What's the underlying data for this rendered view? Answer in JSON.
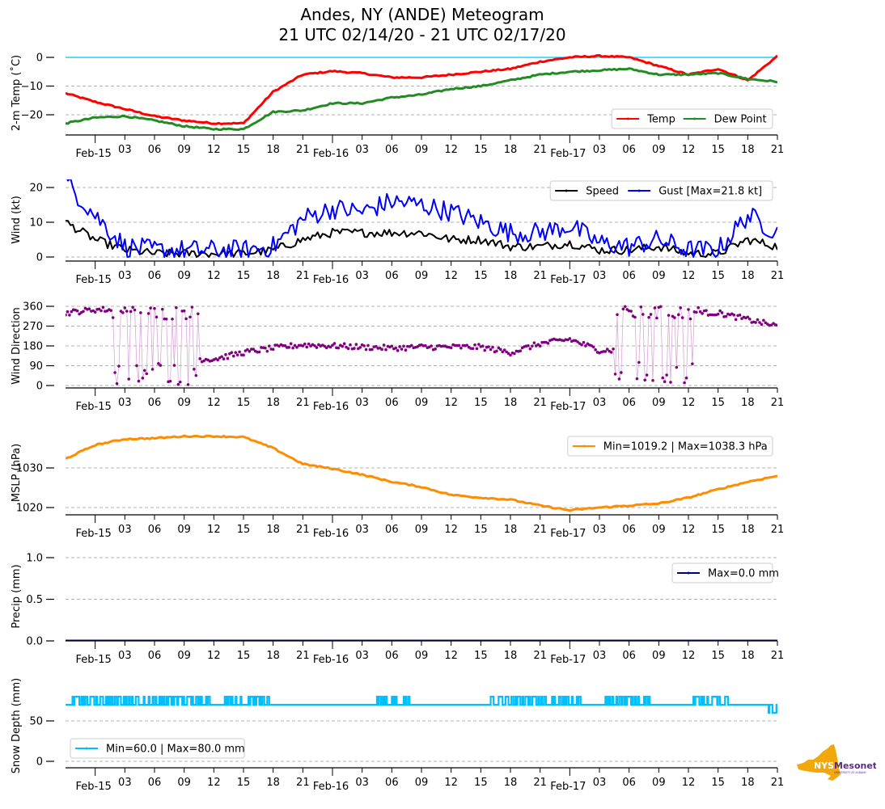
{
  "title": {
    "line1": "Andes, NY (ANDE) Meteogram",
    "line2": "21 UTC 02/14/20 - 21 UTC 02/17/20"
  },
  "logo": {
    "primary": "NYS",
    "secondary": "Mesonet",
    "tagline": "UNIVERSITY AT ALBANY",
    "state_color": "#f0a80c",
    "text_color": "#5b2c83"
  },
  "chart_data": [
    {
      "type": "line",
      "id": "temp",
      "ylabel": "2-m Temp ($^\\circ$C)",
      "ylabel_display": "2-m Temp (˚C)",
      "ylim": [
        -27,
        2
      ],
      "yticks": [
        0,
        -10,
        -20
      ],
      "ytick_labels": [
        "0",
        "−10",
        "−20"
      ],
      "grid": true,
      "reference_line": {
        "value": 0,
        "color": "#00bfff"
      },
      "legend": {
        "placement": "lower-right",
        "columns": 2
      },
      "x_hours": [
        0,
        3,
        6,
        9,
        12,
        15,
        18,
        21,
        24,
        27,
        30,
        33,
        36,
        39,
        42,
        45,
        48,
        51,
        54,
        57,
        60,
        63,
        66,
        69,
        72
      ],
      "series": [
        {
          "name": "Temp",
          "color": "#ff0000",
          "values": [
            -12.5,
            -15.5,
            -18,
            -20.5,
            -22,
            -23,
            -23,
            -12,
            -6,
            -4.8,
            -5.5,
            -7,
            -7,
            -6,
            -5,
            -4,
            -1.5,
            0,
            0.5,
            0,
            -3,
            -6,
            -4,
            -8,
            0.5
          ]
        },
        {
          "name": "Dew Point",
          "color": "#228b22",
          "values": [
            -23,
            -21,
            -20.5,
            -22,
            -24,
            -25,
            -25,
            -19,
            -18.5,
            -16,
            -16,
            -14,
            -13,
            -11,
            -10,
            -8,
            -6,
            -5,
            -4.5,
            -4,
            -6,
            -6,
            -5.5,
            -7.5,
            -8.5
          ]
        }
      ]
    },
    {
      "type": "line",
      "id": "wind",
      "ylabel": "Wind (kt)",
      "ylim": [
        -1.2,
        23
      ],
      "yticks": [
        0,
        10,
        20
      ],
      "ytick_labels": [
        "0",
        "10",
        "20"
      ],
      "grid": true,
      "legend": {
        "placement": "upper-right",
        "columns": 2
      },
      "x_hours": [
        0,
        3,
        6,
        9,
        12,
        15,
        18,
        21,
        24,
        27,
        30,
        33,
        36,
        39,
        42,
        45,
        48,
        51,
        54,
        57,
        60,
        63,
        66,
        69,
        72
      ],
      "series": [
        {
          "name": "Speed",
          "color": "#000000",
          "values": [
            10,
            5,
            2,
            1,
            1,
            1,
            1,
            2,
            5,
            7,
            7,
            7,
            7,
            5,
            5,
            3,
            3,
            4,
            2,
            2,
            3,
            1,
            1,
            5,
            3
          ]
        },
        {
          "name": "Gust [Max=21.8 kt]",
          "color": "#0000ff",
          "max": 21.8,
          "values": [
            21.8,
            12,
            3,
            2,
            2,
            2,
            2,
            3,
            11,
            14,
            13,
            16,
            15,
            13,
            10,
            7,
            7,
            9,
            4,
            3,
            5,
            2,
            2,
            12,
            7
          ]
        }
      ]
    },
    {
      "type": "scatter",
      "id": "direction",
      "ylabel": "Wind Direction",
      "ylim": [
        -5,
        365
      ],
      "yticks": [
        0,
        90,
        180,
        270,
        360
      ],
      "ytick_labels": [
        "0",
        "90",
        "180",
        "270",
        "360"
      ],
      "grid": true,
      "x_hours": [
        0,
        3,
        6,
        9,
        12,
        15,
        18,
        21,
        24,
        27,
        30,
        33,
        36,
        39,
        42,
        45,
        48,
        51,
        54,
        57,
        60,
        63,
        66,
        69,
        72
      ],
      "series": [
        {
          "name": "Direction",
          "color": "#800080",
          "line_color": "#d8a8d8",
          "values": [
            330,
            345,
            "var",
            "var",
            "var",
            120,
            150,
            170,
            185,
            180,
            175,
            170,
            175,
            175,
            175,
            150,
            190,
            210,
            160,
            "var",
            "var",
            "var",
            330,
            300,
            270
          ]
        }
      ]
    },
    {
      "type": "line",
      "id": "mslp",
      "ylabel": "MSLP (hPa)",
      "ylim": [
        1018,
        1040
      ],
      "yticks": [
        1020,
        1030
      ],
      "ytick_labels": [
        "1020",
        "1030"
      ],
      "grid": true,
      "legend": {
        "placement": "upper-right",
        "columns": 1
      },
      "x_hours": [
        0,
        3,
        6,
        9,
        12,
        15,
        18,
        21,
        24,
        27,
        30,
        33,
        36,
        39,
        42,
        45,
        48,
        51,
        54,
        57,
        60,
        63,
        66,
        69,
        72
      ],
      "series": [
        {
          "name": "Min=1019.2 | Max=1038.3 hPa",
          "color": "#ff8c00",
          "min": 1019.2,
          "max": 1038.3,
          "values": [
            1032.3,
            1035.8,
            1037.3,
            1037.5,
            1038,
            1038,
            1037.8,
            1035,
            1031,
            1029.8,
            1028.3,
            1026.5,
            1025.2,
            1023.2,
            1022.5,
            1022,
            1020.5,
            1019.3,
            1020,
            1020.5,
            1021,
            1022.5,
            1024.6,
            1026.5,
            1028
          ]
        }
      ]
    },
    {
      "type": "line",
      "id": "precip",
      "ylabel": "Precip (mm)",
      "ylim": [
        0,
        1.0
      ],
      "yticks": [
        0.0,
        0.5,
        1.0
      ],
      "ytick_labels": [
        "0.0",
        "0.5",
        "1.0"
      ],
      "grid": true,
      "legend": {
        "placement": "upper-right",
        "columns": 1
      },
      "x_hours": [
        0,
        72
      ],
      "series": [
        {
          "name": "Max=0.0 mm",
          "color": "#000080",
          "max": 0.0,
          "values": [
            0,
            0
          ]
        }
      ]
    },
    {
      "type": "line",
      "id": "snow",
      "ylabel": "Snow Depth (mm)",
      "ylim": [
        -8,
        95
      ],
      "yticks": [
        0,
        50
      ],
      "ytick_labels": [
        "0",
        "50"
      ],
      "grid": true,
      "legend": {
        "placement": "lower-left",
        "columns": 1
      },
      "x_hours": [
        0,
        72
      ],
      "series": [
        {
          "name": "Min=60.0 | Max=80.0 mm",
          "color": "#00bfff",
          "min": 60.0,
          "max": 80.0,
          "base": 70,
          "high": 80,
          "low": 60,
          "flicker_ranges_hours": [
            [
              0.5,
              14.5
            ],
            [
              16,
              20.5
            ],
            [
              31.5,
              35
            ],
            [
              42.5,
              52
            ],
            [
              54.5,
              59
            ],
            [
              63.5,
              67
            ]
          ],
          "drop_after_hour": 70.5
        }
      ]
    }
  ],
  "xaxis": {
    "start": "21 UTC 02/14/20",
    "end": "21 UTC 02/17/20",
    "span_hours": 72,
    "ticks": [
      {
        "h": 3,
        "label": "Feb-15",
        "major": true
      },
      {
        "h": 6,
        "label": "03"
      },
      {
        "h": 9,
        "label": "06"
      },
      {
        "h": 12,
        "label": "09"
      },
      {
        "h": 15,
        "label": "12"
      },
      {
        "h": 18,
        "label": "15"
      },
      {
        "h": 21,
        "label": "18"
      },
      {
        "h": 24,
        "label": "21"
      },
      {
        "h": 27,
        "label": "Feb-16",
        "major": true
      },
      {
        "h": 30,
        "label": "03"
      },
      {
        "h": 33,
        "label": "06"
      },
      {
        "h": 36,
        "label": "09"
      },
      {
        "h": 39,
        "label": "12"
      },
      {
        "h": 42,
        "label": "15"
      },
      {
        "h": 45,
        "label": "18"
      },
      {
        "h": 48,
        "label": "21"
      },
      {
        "h": 51,
        "label": "Feb-17",
        "major": true
      },
      {
        "h": 54,
        "label": "03"
      },
      {
        "h": 57,
        "label": "06"
      },
      {
        "h": 60,
        "label": "09"
      },
      {
        "h": 63,
        "label": "12"
      },
      {
        "h": 66,
        "label": "15"
      },
      {
        "h": 69,
        "label": "18"
      },
      {
        "h": 72,
        "label": "21"
      }
    ]
  }
}
